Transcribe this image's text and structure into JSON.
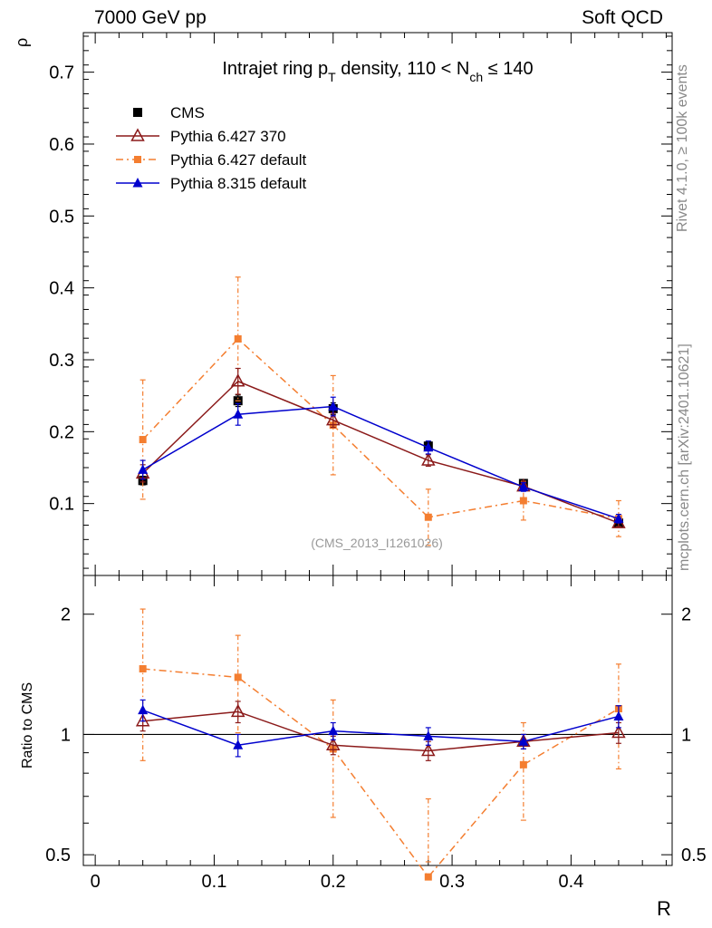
{
  "header": {
    "left": "7000 GeV pp",
    "right": "Soft QCD"
  },
  "side_labels": {
    "rivet": "Rivet 4.1.0, ≥ 100k events",
    "site": "mcplots.cern.ch [arXiv:2401.10621]"
  },
  "chart_data": {
    "type": "line",
    "title": {
      "part1": "Intrajet ring p",
      "sub1": "T",
      "part2": " density, 110 < N",
      "sub2": "ch",
      "part3": " ≤ 140"
    },
    "watermark": "(CMS_2013_I1261026)",
    "xlabel": "R",
    "ylabel": "ρ",
    "ratio_ylabel": "Ratio to CMS",
    "xlim": [
      -0.01,
      0.485
    ],
    "ylim": [
      0,
      0.755
    ],
    "ratio_ylim": [
      0.47,
      2.5
    ],
    "x_ticks": [
      "0",
      "0.1",
      "0.2",
      "0.3",
      "0.4"
    ],
    "x_tick_values": [
      0,
      0.1,
      0.2,
      0.3,
      0.4
    ],
    "y_ticks": [
      "0.1",
      "0.2",
      "0.3",
      "0.4",
      "0.5",
      "0.6",
      "0.7"
    ],
    "y_tick_values": [
      0.1,
      0.2,
      0.3,
      0.4,
      0.5,
      0.6,
      0.7
    ],
    "ratio_ticks": [
      "0.5",
      "1",
      "2"
    ],
    "ratio_tick_values": [
      0.5,
      1,
      2
    ],
    "x": [
      0.04,
      0.12,
      0.2,
      0.28,
      0.36,
      0.44
    ],
    "legend_position": "top-left",
    "series": [
      {
        "name": "CMS",
        "color": "#000000",
        "marker": "square-filled",
        "line": "none",
        "values": [
          0.132,
          0.243,
          0.232,
          0.18,
          0.128,
          0.073
        ],
        "err": [
          0.006,
          0.008,
          0.008,
          0.006,
          0.005,
          0.004
        ],
        "ratio": [
          1,
          1,
          1,
          1,
          1,
          1
        ],
        "ratio_err": [
          0,
          0,
          0,
          0,
          0,
          0
        ]
      },
      {
        "name": "Pythia 6.427 370",
        "color": "#8b1a1a",
        "marker": "triangle-open",
        "line": "solid",
        "values": [
          0.142,
          0.27,
          0.216,
          0.16,
          0.124,
          0.073
        ],
        "err": [
          0.012,
          0.018,
          0.01,
          0.008,
          0.005,
          0.005
        ],
        "ratio": [
          1.08,
          1.14,
          0.94,
          0.91,
          0.96,
          1.01
        ],
        "ratio_err": [
          0.06,
          0.07,
          0.05,
          0.05,
          0.04,
          0.06
        ]
      },
      {
        "name": "Pythia 6.427 default",
        "color": "#f47e30",
        "marker": "square-small",
        "line": "dashdot",
        "values": [
          0.189,
          0.329,
          0.209,
          0.081,
          0.104,
          0.079
        ],
        "err": [
          0.083,
          0.086,
          0.069,
          0.039,
          0.027,
          0.025
        ],
        "ratio": [
          1.46,
          1.39,
          0.92,
          0.44,
          0.84,
          1.16
        ],
        "ratio_err": [
          0.6,
          0.38,
          0.3,
          0.25,
          0.23,
          0.34
        ]
      },
      {
        "name": "Pythia 8.315 default",
        "color": "#0000cd",
        "marker": "triangle-filled",
        "line": "solid",
        "values": [
          0.147,
          0.224,
          0.235,
          0.178,
          0.123,
          0.079
        ],
        "err": [
          0.013,
          0.015,
          0.013,
          0.009,
          0.006,
          0.006
        ],
        "ratio": [
          1.15,
          0.94,
          1.02,
          0.99,
          0.96,
          1.11
        ],
        "ratio_err": [
          0.07,
          0.06,
          0.05,
          0.05,
          0.04,
          0.07
        ]
      }
    ]
  }
}
